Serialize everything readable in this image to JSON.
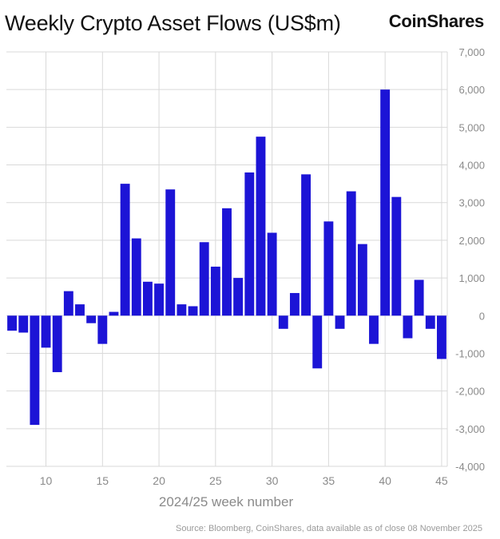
{
  "header": {
    "title": "Weekly Crypto Asset Flows (US$m)",
    "brand": "CoinShares"
  },
  "footer": {
    "source": "Source: Bloomberg, CoinShares, data available as of close 08 November 2025"
  },
  "colors": {
    "bar": "#1c14d6",
    "grid": "#d9d9d9",
    "axis_text": "#8a8a8a"
  },
  "chart_data": {
    "type": "bar",
    "title": "Weekly Crypto Asset Flows (US$m)",
    "xlabel": "2024/25 week number",
    "ylabel": "",
    "y_axis_position": "right",
    "ylim": [
      -4000,
      7000
    ],
    "yticks": [
      -4000,
      -3000,
      -2000,
      -1000,
      0,
      1000,
      2000,
      3000,
      4000,
      5000,
      6000,
      7000
    ],
    "ytick_labels": [
      "-4,000",
      "-3,000",
      "-2,000",
      "-1,000",
      "0",
      "1,000",
      "2,000",
      "3,000",
      "4,000",
      "5,000",
      "6,000",
      "7,000"
    ],
    "xticks": [
      10,
      15,
      20,
      25,
      30,
      35,
      40,
      45
    ],
    "xtick_labels": [
      "10",
      "15",
      "20",
      "25",
      "30",
      "35",
      "40",
      "45"
    ],
    "xlim": [
      6.5,
      45.5
    ],
    "grid": true,
    "categories": [
      7,
      8,
      9,
      10,
      11,
      12,
      13,
      14,
      15,
      16,
      17,
      18,
      19,
      20,
      21,
      22,
      23,
      24,
      25,
      26,
      27,
      28,
      29,
      30,
      31,
      32,
      33,
      34,
      35,
      36,
      37,
      38,
      39,
      40,
      41,
      42,
      43,
      44,
      45
    ],
    "values": [
      -400,
      -450,
      -2900,
      -850,
      -1500,
      650,
      300,
      -200,
      -750,
      100,
      3500,
      2050,
      900,
      850,
      3350,
      300,
      250,
      1950,
      1300,
      2850,
      1000,
      3800,
      4750,
      2200,
      -350,
      600,
      3750,
      -1400,
      2500,
      -350,
      3300,
      1900,
      -750,
      6000,
      3150,
      -600,
      950,
      -350,
      -1150
    ]
  }
}
